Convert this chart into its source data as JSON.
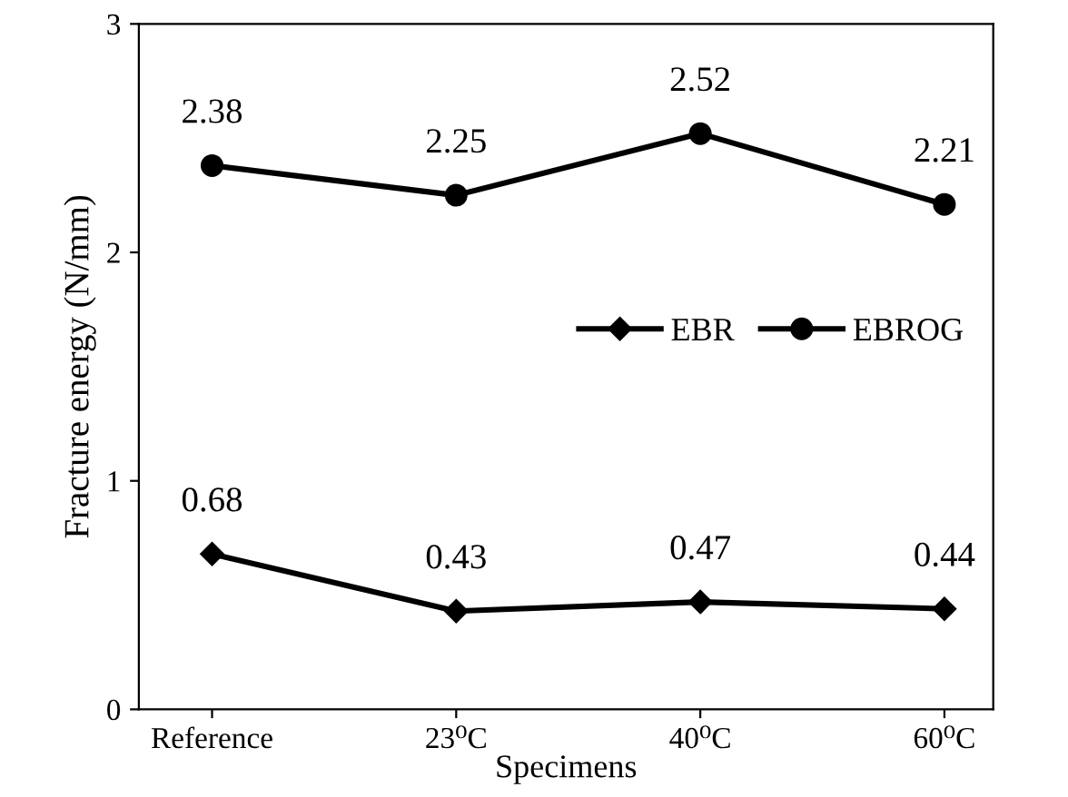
{
  "chart_data": {
    "type": "line",
    "xlabel": "Specimens",
    "ylabel": "Fracture energy (N/mm)",
    "categories": [
      "Reference",
      "23⁰C",
      "40⁰C",
      "60⁰C"
    ],
    "series": [
      {
        "name": "EBR",
        "color": "#000000",
        "marker": "diamond",
        "values": [
          0.68,
          0.43,
          0.47,
          0.44
        ]
      },
      {
        "name": "EBROG",
        "color": "#000000",
        "marker": "circle",
        "values": [
          2.38,
          2.25,
          2.52,
          2.21
        ]
      }
    ],
    "ylim": [
      0,
      3
    ],
    "yticks": [
      0,
      1,
      2,
      3
    ],
    "grid": false,
    "legend": "right",
    "data_labels": true,
    "line_style": "solid"
  }
}
